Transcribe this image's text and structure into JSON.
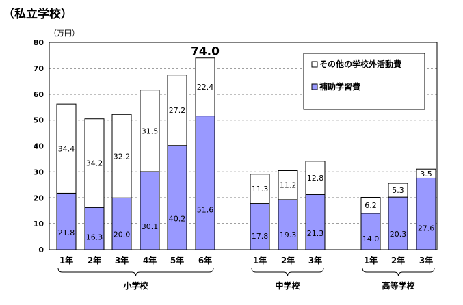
{
  "chart_data": {
    "type": "bar",
    "stacked": true,
    "title": "（私立学校）",
    "unit_label": "（万円）",
    "ylim": [
      0,
      80
    ],
    "yticks": [
      0,
      10,
      20,
      30,
      40,
      50,
      60,
      70,
      80
    ],
    "grid": "horizontal-dashed",
    "legend_position": "top-right",
    "categories": [
      "1年",
      "2年",
      "3年",
      "4年",
      "5年",
      "6年",
      "1年",
      "2年",
      "3年",
      "1年",
      "2年",
      "3年"
    ],
    "groups": [
      {
        "label": "小学校",
        "start": 0,
        "end": 5
      },
      {
        "label": "中学校",
        "start": 6,
        "end": 8
      },
      {
        "label": "高等学校",
        "start": 9,
        "end": 11
      }
    ],
    "series": [
      {
        "name": "補助学習費",
        "color": "#9999ff",
        "values": [
          21.8,
          16.3,
          20.0,
          30.1,
          40.2,
          51.6,
          17.8,
          19.3,
          21.3,
          14.0,
          20.3,
          27.6
        ]
      },
      {
        "name": "その他の学校外活動費",
        "color": "#ffffff",
        "values": [
          34.4,
          34.2,
          32.2,
          31.5,
          27.2,
          22.4,
          11.3,
          11.2,
          12.8,
          6.2,
          5.3,
          3.5
        ]
      }
    ],
    "total_annotation": {
      "index": 5,
      "text": "74.0"
    }
  }
}
